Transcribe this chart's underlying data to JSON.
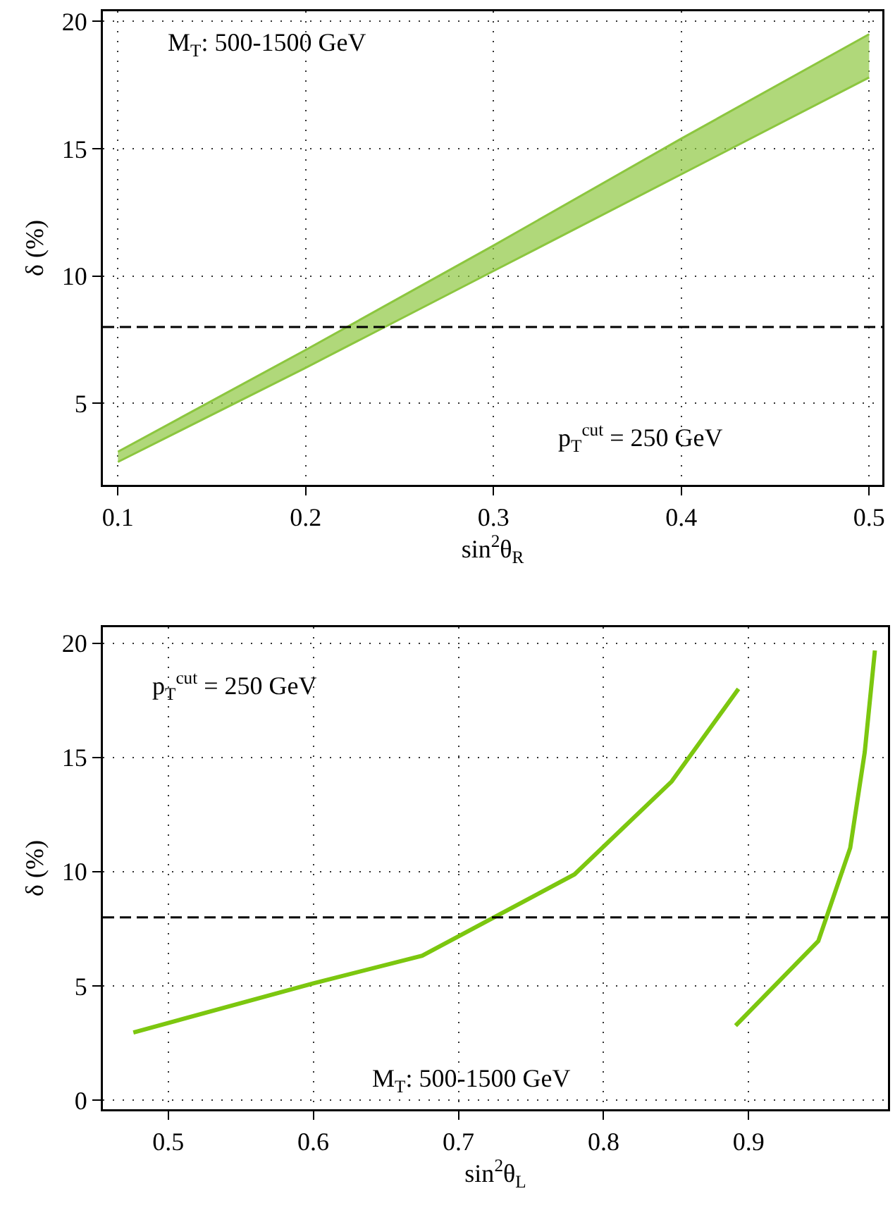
{
  "chart_data": [
    {
      "type": "line",
      "xlabel": "sin$^{2}$θ$_{R}$",
      "ylabel": "δ (%)",
      "annotations": [
        "M$_{T}$: 500-1500 GeV",
        "p$_{T}$$^{cut}$ = 250 GeV"
      ],
      "xlim": [
        0.092,
        0.507
      ],
      "xticks": [
        0.1,
        0.2,
        0.3,
        0.4,
        0.5
      ],
      "ylim": [
        1.8,
        20.4
      ],
      "yticks": [
        5,
        10,
        15,
        20
      ],
      "grid": true,
      "series": [
        {
          "color": "#8cc63f",
          "x": [
            0.1,
            0.2,
            0.3,
            0.4,
            0.5
          ],
          "values": [
            3.1,
            7.1,
            11.2,
            15.4,
            19.5
          ],
          "lower": [
            2.7,
            6.4,
            10.2,
            14.0,
            17.8
          ],
          "upper": [
            3.1,
            7.1,
            11.2,
            15.4,
            19.5
          ]
        },
        {
          "color": "#8cc63f",
          "x": [
            0.1,
            0.2,
            0.3,
            0.4,
            0.5
          ],
          "values": [
            2.7,
            6.4,
            10.2,
            14.0,
            17.8
          ]
        }
      ],
      "ref_lines": [
        {
          "axis": "y",
          "value": 8,
          "color": "#000000",
          "line_style": "dashed"
        }
      ]
    },
    {
      "type": "line",
      "xlabel": "sin$^{2}$θ$_{L}$",
      "ylabel": "δ (%)",
      "annotations": [
        "p$_{T}$$^{cut}$ = 250 GeV",
        "M$_{T}$: 500-1500 GeV"
      ],
      "xlim": [
        0.455,
        0.996
      ],
      "xticks": [
        0.5,
        0.6,
        0.7,
        0.8,
        0.9
      ],
      "ylim": [
        -0.4,
        20.7
      ],
      "yticks": [
        0,
        5,
        10,
        15,
        20
      ],
      "grid": true,
      "series": [
        {
          "color": "#7cc70f",
          "x": [
            0.476,
            0.6,
            0.675,
            0.78,
            0.847,
            0.893
          ],
          "values": [
            2.96,
            5.11,
            6.32,
            9.88,
            13.95,
            18.0
          ]
        },
        {
          "color": "#7cc70f",
          "x": [
            0.891,
            0.948,
            0.97,
            0.98,
            0.987
          ],
          "values": [
            3.26,
            6.96,
            11.04,
            15.23,
            19.68
          ]
        }
      ],
      "ref_lines": [
        {
          "axis": "y",
          "value": 8,
          "color": "#000000",
          "line_style": "dashed"
        }
      ]
    }
  ]
}
